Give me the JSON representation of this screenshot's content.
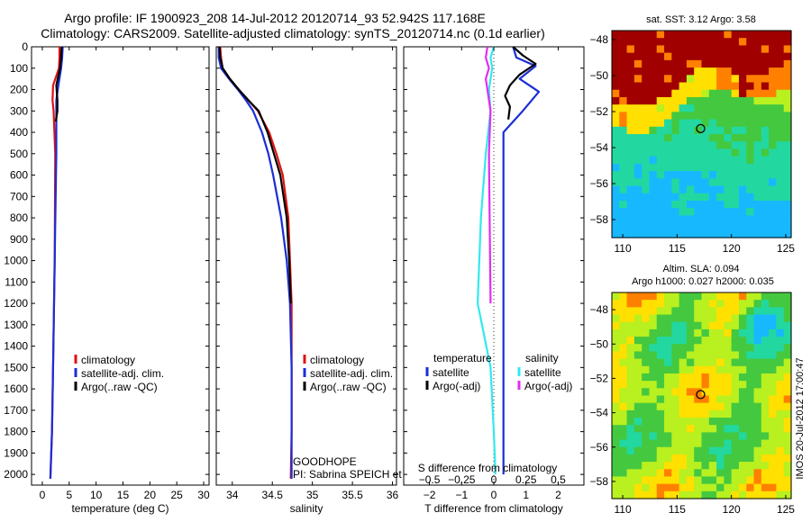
{
  "header": {
    "title_line1": "Argo profile: IF 1900923_208 14-Jul-2012 20120714_93 52.942S 117.168E",
    "title_line2": "Climatology: CARS2009. Satellite-adjusted climatology: synTS_20120714.nc (0.1d earlier)"
  },
  "colors": {
    "climatology": "#dd1111",
    "satellite": "#1a2ed6",
    "argo": "#000000",
    "sal_satellite": "#33e8f0",
    "sal_argo": "#e02ef0"
  },
  "chart_data": [
    {
      "type": "line",
      "name": "temperature-profile",
      "xlabel": "temperature (deg C)",
      "ylabel": "",
      "xlim": [
        -2,
        31
      ],
      "ylim": [
        2050,
        0
      ],
      "xticks": [
        0,
        5,
        10,
        15,
        20,
        25,
        30
      ],
      "yticks": [
        0,
        100,
        200,
        300,
        400,
        500,
        600,
        700,
        800,
        900,
        1000,
        1100,
        1200,
        1300,
        1400,
        1500,
        1600,
        1700,
        1800,
        1900,
        2000
      ],
      "legend": {
        "position": "lower-middle",
        "entries": [
          "climatology",
          "satellite-adj. clim.",
          "Argo(..raw -QC)"
        ]
      },
      "series": [
        {
          "name": "climatology",
          "color_key": "climatology",
          "x": [
            3.2,
            3.2,
            3.1,
            2.0,
            1.9,
            2.1,
            2.4,
            2.3,
            2.0,
            1.8,
            1.5
          ],
          "y": [
            0,
            50,
            100,
            180,
            250,
            300,
            500,
            1000,
            1500,
            1800,
            2020
          ]
        },
        {
          "name": "satellite-adj. clim.",
          "color_key": "satellite",
          "x": [
            3.8,
            3.7,
            3.5,
            3.0,
            2.6,
            2.6,
            2.6,
            2.3,
            2.0,
            1.8,
            1.5
          ],
          "y": [
            0,
            50,
            100,
            180,
            250,
            300,
            500,
            1000,
            1500,
            1800,
            2020
          ]
        },
        {
          "name": "Argo(..raw -QC)",
          "color_key": "argo",
          "x": [
            3.6,
            3.5,
            3.3,
            2.6,
            2.8,
            2.8,
            2.5
          ],
          "y": [
            0,
            50,
            100,
            180,
            250,
            300,
            350
          ]
        }
      ]
    },
    {
      "type": "line",
      "name": "salinity-profile",
      "xlabel": "salinity",
      "xlim": [
        33.8,
        36.05
      ],
      "ylim": [
        2050,
        0
      ],
      "xticks": [
        34,
        34.5,
        35,
        35.5,
        36
      ],
      "legend": {
        "position": "lower-middle",
        "entries": [
          "climatology",
          "satellite-adj. clim.",
          "Argo(..raw -QC)"
        ]
      },
      "annotations": [
        "GOODHOPE",
        "PI: Sabrina SPEICH et Michel ARHAN"
      ],
      "series": [
        {
          "name": "climatology",
          "color_key": "climatology",
          "x": [
            33.85,
            33.86,
            33.88,
            33.97,
            34.08,
            34.2,
            34.32,
            34.46,
            34.55,
            34.63,
            34.7,
            34.72,
            34.74,
            34.74,
            34.74,
            34.73
          ],
          "y": [
            0,
            50,
            100,
            150,
            200,
            250,
            300,
            400,
            500,
            600,
            800,
            1000,
            1200,
            1500,
            1800,
            2020
          ]
        },
        {
          "name": "satellite-adj. clim.",
          "color_key": "satellite",
          "x": [
            33.83,
            33.83,
            33.86,
            33.96,
            34.07,
            34.17,
            34.26,
            34.37,
            34.45,
            34.51,
            34.61,
            34.68,
            34.72,
            34.74,
            34.74,
            34.74
          ],
          "y": [
            0,
            50,
            100,
            150,
            200,
            250,
            300,
            400,
            500,
            600,
            800,
            1000,
            1200,
            1500,
            1800,
            2020
          ]
        },
        {
          "name": "Argo(..raw -QC)",
          "color_key": "argo",
          "x": [
            33.84,
            33.85,
            33.88,
            33.97,
            34.08,
            34.2,
            34.33,
            34.44,
            34.52,
            34.6,
            34.68,
            34.71,
            34.73
          ],
          "y": [
            0,
            50,
            100,
            150,
            200,
            250,
            300,
            400,
            500,
            600,
            800,
            1000,
            1200
          ]
        }
      ]
    },
    {
      "type": "line",
      "name": "difference-profile",
      "xlabel": "T difference from climatology",
      "xlabel_top": "S difference from climatology",
      "xlim": [
        -2.8,
        2.8
      ],
      "ylim": [
        2050,
        0
      ],
      "xticks": [
        -2,
        -1,
        0,
        1,
        2
      ],
      "xticks_top": [
        -0.5,
        -0.25,
        0,
        0.25,
        0.5
      ],
      "legend": {
        "position": "lower",
        "titles": [
          "temperature",
          "salinity"
        ],
        "entries": [
          "satellite",
          "Argo(-adj)",
          "satellite",
          "Argo(-adj)"
        ]
      },
      "series": [
        {
          "name": "temperature satellite",
          "color_key": "satellite",
          "x": [
            0.6,
            0.7,
            1.3,
            0.8,
            1.4,
            0.9,
            0.3,
            0.3,
            0.3,
            0.3
          ],
          "y": [
            0,
            50,
            90,
            150,
            210,
            300,
            400,
            700,
            1200,
            2000
          ]
        },
        {
          "name": "temperature Argo(-adj)",
          "color_key": "argo",
          "x": [
            0.6,
            0.9,
            1.3,
            0.8,
            0.5,
            0.35,
            0.5,
            0.45
          ],
          "y": [
            0,
            40,
            80,
            130,
            180,
            230,
            280,
            340
          ]
        },
        {
          "name": "salinity satellite",
          "color_key": "sal_satellite",
          "x": [
            0.0,
            -0.1,
            -0.05,
            -0.15,
            -0.1,
            -0.25,
            -0.4,
            -0.5,
            -0.1,
            0.0,
            0.05
          ],
          "y": [
            0,
            50,
            100,
            200,
            300,
            500,
            800,
            1200,
            1500,
            1800,
            2000
          ]
        },
        {
          "name": "salinity Argo(-adj)",
          "color_key": "sal_argo",
          "x": [
            -0.2,
            -0.25,
            -0.15,
            -0.25,
            -0.2,
            -0.1,
            -0.15,
            -0.1
          ],
          "y": [
            0,
            50,
            100,
            150,
            200,
            300,
            500,
            1200
          ]
        }
      ]
    },
    {
      "type": "heatmap",
      "name": "sst-map",
      "title": "sat. SST: 3.12 Argo: 3.58",
      "xlim": [
        109,
        125.5
      ],
      "ylim": [
        -59,
        -47.5
      ],
      "xticks": [
        110,
        115,
        120,
        125
      ],
      "yticks": [
        -48,
        -50,
        -52,
        -54,
        -56,
        -58
      ],
      "marker": {
        "lon": 117.168,
        "lat": -52.942
      }
    },
    {
      "type": "heatmap",
      "name": "sla-map",
      "title": "Altim. SLA: 0.094",
      "subtitle": "Argo h1000: 0.027 h2000: 0.035",
      "xlim": [
        109,
        125.5
      ],
      "ylim": [
        -59,
        -47
      ],
      "xticks": [
        110,
        115,
        120,
        125
      ],
      "yticks": [
        -48,
        -50,
        -52,
        -54,
        -56,
        -58
      ],
      "marker": {
        "lon": 117.168,
        "lat": -52.942
      },
      "side_label": "IMOS 20-Jul-2012 17:00:47"
    }
  ]
}
